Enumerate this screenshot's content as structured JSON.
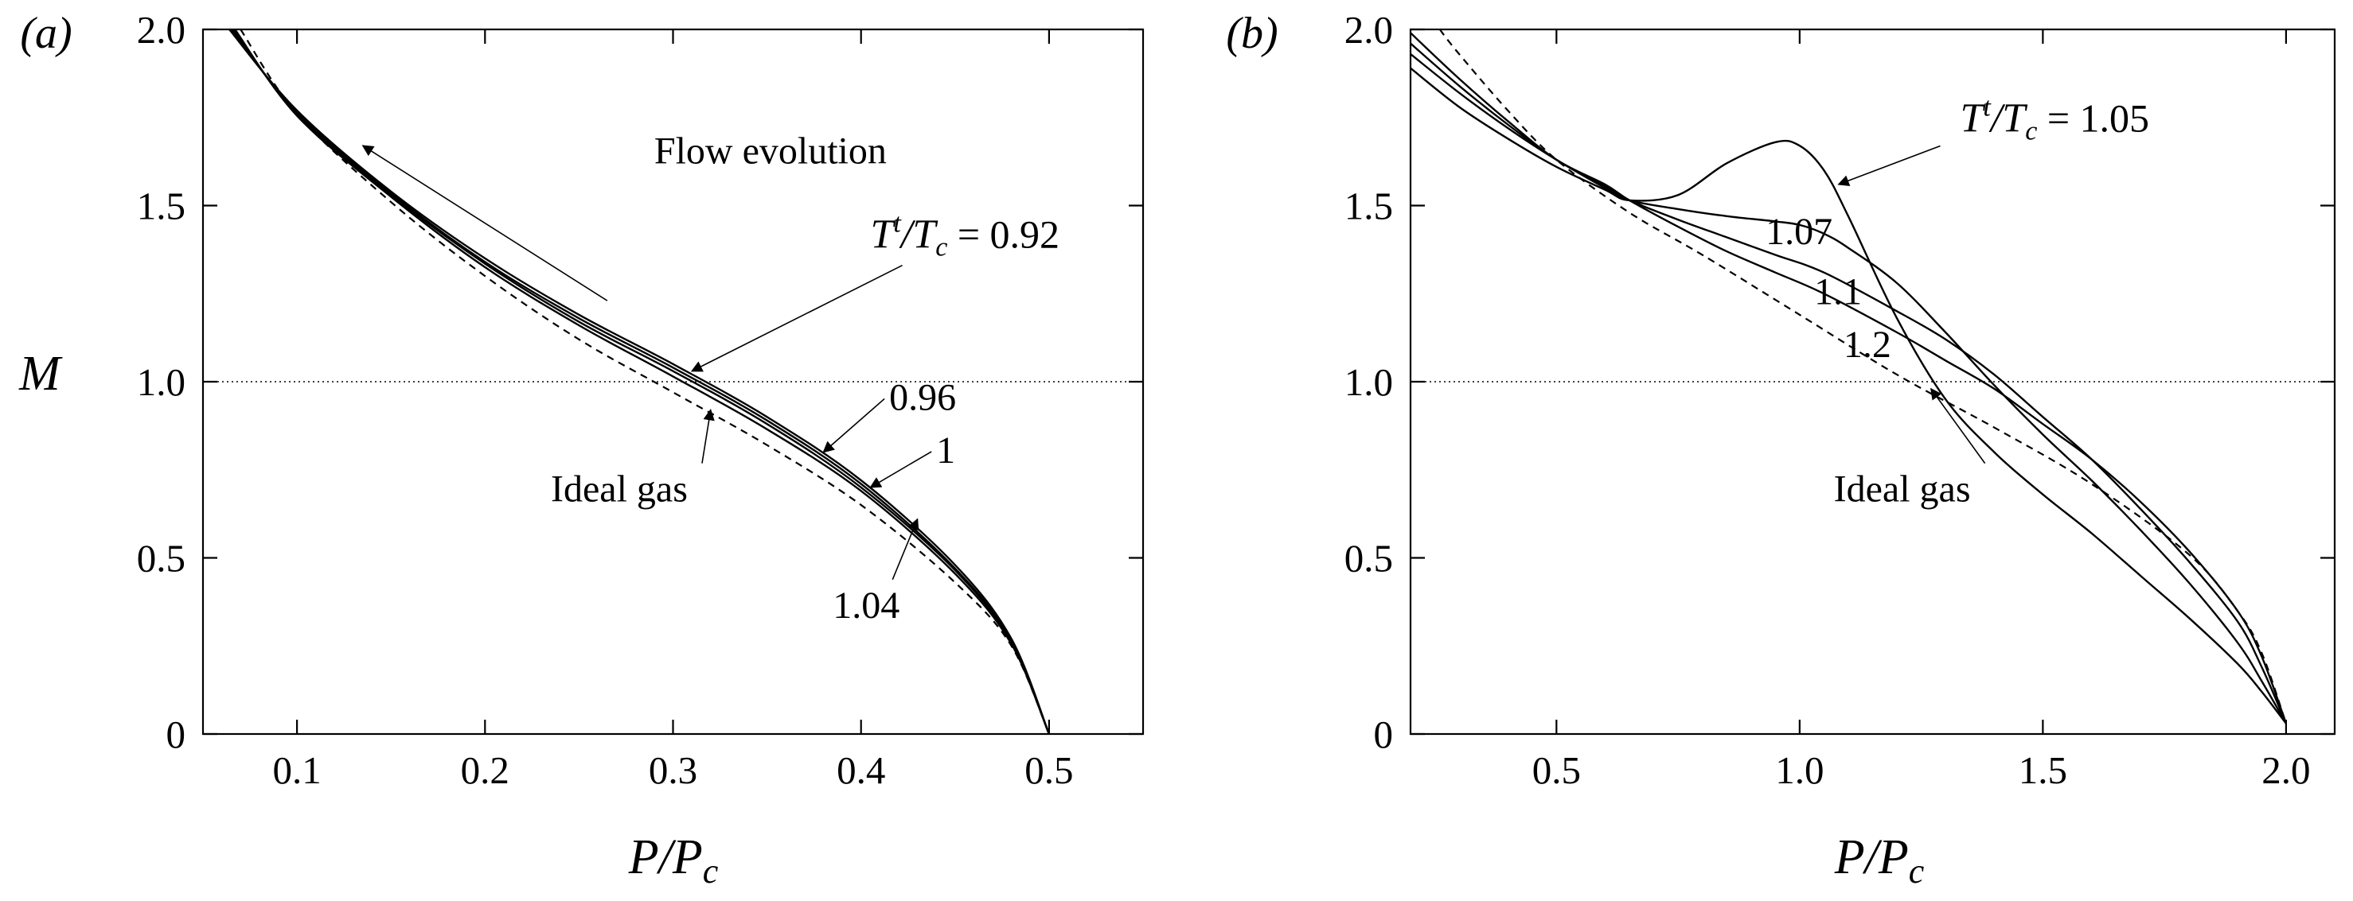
{
  "chart_data": [
    {
      "panel_label": "(a)",
      "type": "line",
      "xlabel": {
        "main": "P/P",
        "sub": "c"
      },
      "ylabel": "M",
      "xlim": [
        0.05,
        0.55
      ],
      "ylim": [
        0,
        2.0
      ],
      "xticks": [
        0.1,
        0.2,
        0.3,
        0.4,
        0.5
      ],
      "xtick_labels": [
        "0.1",
        "0.2",
        "0.3",
        "0.4",
        "0.5"
      ],
      "yticks": [
        0,
        0.5,
        1.0,
        1.5,
        2.0
      ],
      "ytick_labels": [
        "0",
        "0.5",
        "1.0",
        "1.5",
        "2.0"
      ],
      "reference_line": {
        "y": 1.0,
        "style": "dotted"
      },
      "grid": false,
      "series": [
        {
          "name": "0.92",
          "style": "solid",
          "x": [
            0.064,
            0.1,
            0.15,
            0.2,
            0.25,
            0.3,
            0.35,
            0.4,
            0.45,
            0.48,
            0.5
          ],
          "y": [
            2.0,
            1.77,
            1.54,
            1.35,
            1.19,
            1.05,
            0.9,
            0.72,
            0.48,
            0.27,
            0.0
          ]
        },
        {
          "name": "0.96",
          "style": "solid",
          "x": [
            0.065,
            0.1,
            0.15,
            0.2,
            0.25,
            0.3,
            0.35,
            0.4,
            0.45,
            0.48,
            0.5
          ],
          "y": [
            2.0,
            1.765,
            1.535,
            1.34,
            1.18,
            1.04,
            0.89,
            0.71,
            0.47,
            0.265,
            0.0
          ]
        },
        {
          "name": "1",
          "style": "solid",
          "x": [
            0.066,
            0.1,
            0.15,
            0.2,
            0.25,
            0.3,
            0.35,
            0.4,
            0.45,
            0.48,
            0.5
          ],
          "y": [
            2.0,
            1.76,
            1.53,
            1.335,
            1.17,
            1.03,
            0.88,
            0.7,
            0.465,
            0.26,
            0.0
          ]
        },
        {
          "name": "1.04",
          "style": "solid",
          "x": [
            0.067,
            0.1,
            0.15,
            0.2,
            0.25,
            0.3,
            0.35,
            0.4,
            0.45,
            0.48,
            0.5
          ],
          "y": [
            2.0,
            1.755,
            1.525,
            1.325,
            1.16,
            1.015,
            0.865,
            0.69,
            0.455,
            0.255,
            0.0
          ]
        },
        {
          "name": "Ideal gas",
          "style": "dashed",
          "x": [
            0.07,
            0.1,
            0.15,
            0.2,
            0.25,
            0.3,
            0.35,
            0.4,
            0.45,
            0.48,
            0.5
          ],
          "y": [
            2.0,
            1.76,
            1.51,
            1.3,
            1.12,
            0.97,
            0.82,
            0.65,
            0.43,
            0.25,
            0.0
          ]
        }
      ],
      "annotations": [
        {
          "text": "Flow evolution",
          "arrow": true,
          "arrow_from": {
            "x": 0.265,
            "y": 1.23
          },
          "arrow_to": {
            "x": 0.135,
            "y": 1.67
          },
          "text_anchor": {
            "x": 0.29,
            "y": 1.62
          }
        },
        {
          "text_main": "T",
          "text_sup": "t",
          "text_mid": "/T",
          "text_sub": "c",
          "text_tail": " = 0.92",
          "target": {
            "x": 0.31,
            "y": 1.03
          },
          "text_anchor": {
            "x": 0.405,
            "y": 1.38
          }
        },
        {
          "text": "0.96",
          "target": {
            "x": 0.38,
            "y": 0.8
          },
          "text_anchor": {
            "x": 0.415,
            "y": 0.92
          }
        },
        {
          "text": "1",
          "target": {
            "x": 0.405,
            "y": 0.7
          },
          "text_anchor": {
            "x": 0.44,
            "y": 0.77
          }
        },
        {
          "text": "1.04",
          "target": {
            "x": 0.43,
            "y": 0.61
          },
          "text_anchor": {
            "x": 0.385,
            "y": 0.33
          }
        },
        {
          "text": "Ideal gas",
          "target": {
            "x": 0.32,
            "y": 0.92
          },
          "text_anchor": {
            "x": 0.235,
            "y": 0.66
          }
        }
      ]
    },
    {
      "panel_label": "(b)",
      "type": "line",
      "xlabel": {
        "main": "P/P",
        "sub": "c"
      },
      "ylabel": "",
      "xlim": [
        0.2,
        2.1
      ],
      "ylim": [
        0,
        2.0
      ],
      "xticks": [
        0.5,
        1.0,
        1.5,
        2.0
      ],
      "xtick_labels": [
        "0.5",
        "1.0",
        "1.5",
        "2.0"
      ],
      "yticks": [
        0,
        0.5,
        1.0,
        1.5,
        2.0
      ],
      "ytick_labels": [
        "0",
        "0.5",
        "1.0",
        "1.5",
        "2.0"
      ],
      "reference_line": {
        "y": 1.0,
        "style": "dotted"
      },
      "grid": false,
      "series": [
        {
          "name": "1.05",
          "style": "solid",
          "x": [
            0.2,
            0.3,
            0.4,
            0.5,
            0.6,
            0.65,
            0.75,
            0.85,
            0.95,
            1.0,
            1.05,
            1.1,
            1.2,
            1.3,
            1.4,
            1.5,
            1.6,
            1.7,
            1.8,
            1.9,
            1.95,
            2.0
          ],
          "y": [
            1.89,
            1.78,
            1.69,
            1.61,
            1.545,
            1.515,
            1.53,
            1.62,
            1.68,
            1.67,
            1.6,
            1.47,
            1.18,
            0.95,
            0.8,
            0.68,
            0.57,
            0.45,
            0.33,
            0.2,
            0.12,
            0.03
          ]
        },
        {
          "name": "1.07",
          "style": "solid",
          "x": [
            0.2,
            0.3,
            0.4,
            0.5,
            0.6,
            0.65,
            0.75,
            0.85,
            0.95,
            1.0,
            1.05,
            1.1,
            1.2,
            1.3,
            1.4,
            1.5,
            1.6,
            1.7,
            1.8,
            1.9,
            1.95,
            2.0
          ],
          "y": [
            1.93,
            1.82,
            1.72,
            1.63,
            1.55,
            1.515,
            1.49,
            1.47,
            1.455,
            1.445,
            1.42,
            1.38,
            1.28,
            1.14,
            0.99,
            0.85,
            0.72,
            0.58,
            0.43,
            0.26,
            0.15,
            0.03
          ]
        },
        {
          "name": "1.1",
          "style": "solid",
          "x": [
            0.2,
            0.3,
            0.4,
            0.5,
            0.6,
            0.65,
            0.75,
            0.85,
            0.95,
            1.05,
            1.2,
            1.3,
            1.4,
            1.5,
            1.6,
            1.7,
            1.8,
            1.9,
            1.95,
            2.0
          ],
          "y": [
            1.96,
            1.84,
            1.73,
            1.63,
            1.555,
            1.515,
            1.46,
            1.41,
            1.36,
            1.31,
            1.2,
            1.12,
            1.02,
            0.9,
            0.78,
            0.64,
            0.49,
            0.32,
            0.19,
            0.03
          ]
        },
        {
          "name": "1.2",
          "style": "solid",
          "x": [
            0.2,
            0.3,
            0.4,
            0.5,
            0.6,
            0.65,
            0.75,
            0.85,
            0.95,
            1.05,
            1.2,
            1.3,
            1.4,
            1.5,
            1.6,
            1.7,
            1.8,
            1.9,
            1.95,
            2.0
          ],
          "y": [
            1.99,
            1.86,
            1.74,
            1.63,
            1.56,
            1.515,
            1.44,
            1.37,
            1.31,
            1.25,
            1.14,
            1.06,
            0.98,
            0.88,
            0.78,
            0.66,
            0.52,
            0.35,
            0.22,
            0.03
          ]
        },
        {
          "name": "Ideal gas",
          "style": "dashed",
          "x": [
            0.26,
            0.3,
            0.4,
            0.5,
            0.65,
            0.8,
            1.0,
            1.2,
            1.4,
            1.6,
            1.8,
            1.9,
            1.95,
            2.0
          ],
          "y": [
            2.0,
            1.93,
            1.77,
            1.63,
            1.48,
            1.36,
            1.19,
            1.02,
            0.87,
            0.71,
            0.51,
            0.35,
            0.23,
            0.03
          ]
        }
      ],
      "annotations": [
        {
          "text_main": "T",
          "text_sup": "t",
          "text_mid": "/T",
          "text_sub": "c",
          "text_tail": " = 1.05",
          "target": {
            "x": 1.08,
            "y": 1.56
          },
          "text_anchor": {
            "x": 1.33,
            "y": 1.71
          }
        },
        {
          "text": "1.07",
          "text_anchor": {
            "x": 0.93,
            "y": 1.39
          }
        },
        {
          "text": "1.1",
          "text_anchor": {
            "x": 1.03,
            "y": 1.22
          }
        },
        {
          "text": "1.2",
          "text_anchor": {
            "x": 1.09,
            "y": 1.07
          }
        },
        {
          "text": "Ideal gas",
          "target": {
            "x": 1.27,
            "y": 0.98
          },
          "text_anchor": {
            "x": 1.07,
            "y": 0.66
          }
        }
      ]
    }
  ]
}
